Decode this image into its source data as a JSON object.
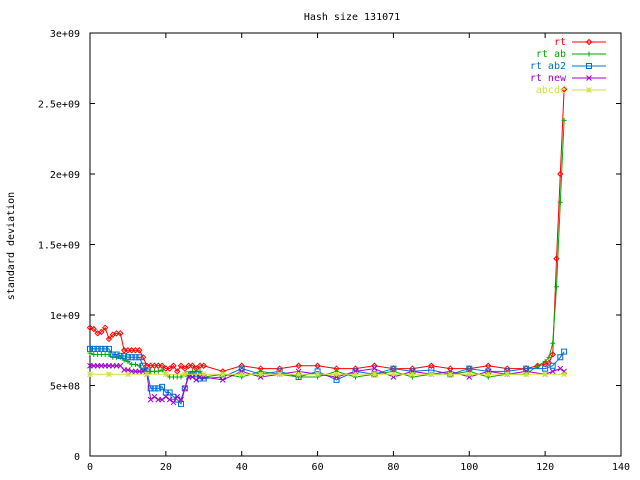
{
  "chart_data": {
    "type": "line",
    "title": "Hash size 131071",
    "xlabel": "",
    "ylabel": "standard deviation",
    "xlim": [
      0,
      140
    ],
    "ylim": [
      0,
      3000000000
    ],
    "x_ticks": [
      {
        "value": 0,
        "label": "0"
      },
      {
        "value": 20,
        "label": "20"
      },
      {
        "value": 40,
        "label": "40"
      },
      {
        "value": 60,
        "label": "60"
      },
      {
        "value": 80,
        "label": "80"
      },
      {
        "value": 100,
        "label": "100"
      },
      {
        "value": 120,
        "label": "120"
      },
      {
        "value": 140,
        "label": "140"
      }
    ],
    "y_ticks": [
      {
        "value": 0,
        "label": "0"
      },
      {
        "value": 500000000,
        "label": "5e+08"
      },
      {
        "value": 1000000000,
        "label": "1e+09"
      },
      {
        "value": 1500000000,
        "label": "1.5e+09"
      },
      {
        "value": 2000000000,
        "label": "2e+09"
      },
      {
        "value": 2500000000,
        "label": "2.5e+09"
      },
      {
        "value": 3000000000,
        "label": "3e+09"
      }
    ],
    "grid": false,
    "legend_position": "top-right",
    "series": [
      {
        "name": "rt",
        "color": "#ff0000",
        "marker": "diamond",
        "x": [
          0,
          1,
          2,
          3,
          4,
          5,
          6,
          7,
          8,
          9,
          10,
          11,
          12,
          13,
          14,
          15,
          16,
          17,
          18,
          19,
          20,
          21,
          22,
          23,
          24,
          25,
          26,
          27,
          28,
          29,
          30,
          35,
          40,
          45,
          50,
          55,
          60,
          65,
          70,
          75,
          80,
          85,
          90,
          95,
          100,
          105,
          110,
          115,
          118,
          120,
          121,
          122,
          123,
          124,
          125
        ],
        "y": [
          910000000,
          900000000,
          870000000,
          880000000,
          910000000,
          830000000,
          860000000,
          870000000,
          870000000,
          750000000,
          750000000,
          750000000,
          750000000,
          750000000,
          700000000,
          640000000,
          640000000,
          640000000,
          640000000,
          640000000,
          620000000,
          620000000,
          640000000,
          600000000,
          640000000,
          620000000,
          640000000,
          640000000,
          620000000,
          640000000,
          640000000,
          600000000,
          640000000,
          620000000,
          620000000,
          640000000,
          640000000,
          620000000,
          620000000,
          640000000,
          620000000,
          620000000,
          640000000,
          620000000,
          620000000,
          640000000,
          620000000,
          620000000,
          640000000,
          650000000,
          660000000,
          720000000,
          1400000000,
          2000000000,
          2600000000
        ]
      },
      {
        "name": "rt ab",
        "color": "#00aa00",
        "marker": "plus",
        "x": [
          0,
          1,
          2,
          3,
          4,
          5,
          6,
          7,
          8,
          9,
          10,
          11,
          12,
          13,
          14,
          15,
          16,
          17,
          18,
          19,
          20,
          21,
          22,
          23,
          24,
          25,
          26,
          27,
          28,
          29,
          30,
          35,
          40,
          45,
          50,
          55,
          60,
          65,
          70,
          75,
          80,
          85,
          90,
          95,
          100,
          105,
          110,
          115,
          118,
          120,
          121,
          122,
          123,
          124,
          125
        ],
        "y": [
          730000000,
          720000000,
          720000000,
          720000000,
          720000000,
          720000000,
          700000000,
          700000000,
          700000000,
          680000000,
          670000000,
          650000000,
          650000000,
          640000000,
          610000000,
          600000000,
          600000000,
          600000000,
          600000000,
          610000000,
          580000000,
          560000000,
          560000000,
          560000000,
          560000000,
          580000000,
          580000000,
          600000000,
          600000000,
          600000000,
          560000000,
          580000000,
          560000000,
          600000000,
          580000000,
          560000000,
          560000000,
          600000000,
          560000000,
          580000000,
          600000000,
          560000000,
          580000000,
          580000000,
          600000000,
          560000000,
          580000000,
          580000000,
          640000000,
          670000000,
          700000000,
          800000000,
          1200000000,
          1800000000,
          2380000000
        ]
      },
      {
        "name": "rt ab2",
        "color": "#0070d0",
        "marker": "square",
        "x": [
          0,
          1,
          2,
          3,
          4,
          5,
          6,
          7,
          8,
          9,
          10,
          11,
          12,
          13,
          14,
          15,
          16,
          17,
          18,
          19,
          20,
          21,
          22,
          23,
          24,
          25,
          26,
          27,
          28,
          29,
          30,
          35,
          40,
          45,
          50,
          55,
          60,
          65,
          70,
          75,
          80,
          85,
          90,
          95,
          100,
          105,
          110,
          115,
          120,
          122,
          124,
          125
        ],
        "y": [
          760000000,
          760000000,
          760000000,
          760000000,
          760000000,
          760000000,
          720000000,
          720000000,
          710000000,
          710000000,
          700000000,
          700000000,
          700000000,
          700000000,
          640000000,
          600000000,
          480000000,
          480000000,
          480000000,
          490000000,
          450000000,
          450000000,
          420000000,
          400000000,
          370000000,
          480000000,
          580000000,
          580000000,
          580000000,
          550000000,
          550000000,
          560000000,
          620000000,
          580000000,
          600000000,
          560000000,
          600000000,
          540000000,
          600000000,
          580000000,
          620000000,
          600000000,
          610000000,
          580000000,
          620000000,
          600000000,
          600000000,
          620000000,
          620000000,
          640000000,
          700000000,
          740000000
        ]
      },
      {
        "name": "rt new",
        "color": "#a000d0",
        "marker": "cross",
        "x": [
          0,
          1,
          2,
          3,
          4,
          5,
          6,
          7,
          8,
          9,
          10,
          11,
          12,
          13,
          14,
          15,
          16,
          17,
          18,
          19,
          20,
          21,
          22,
          23,
          24,
          25,
          26,
          27,
          28,
          29,
          30,
          35,
          40,
          45,
          50,
          55,
          60,
          65,
          70,
          75,
          80,
          85,
          90,
          95,
          100,
          105,
          110,
          115,
          120,
          122,
          124,
          125
        ],
        "y": [
          640000000,
          640000000,
          640000000,
          640000000,
          640000000,
          640000000,
          640000000,
          640000000,
          640000000,
          610000000,
          610000000,
          600000000,
          600000000,
          600000000,
          600000000,
          580000000,
          400000000,
          420000000,
          400000000,
          400000000,
          420000000,
          400000000,
          380000000,
          420000000,
          400000000,
          480000000,
          560000000,
          560000000,
          540000000,
          560000000,
          560000000,
          540000000,
          600000000,
          560000000,
          580000000,
          600000000,
          580000000,
          560000000,
          600000000,
          620000000,
          560000000,
          600000000,
          580000000,
          600000000,
          560000000,
          600000000,
          580000000,
          600000000,
          580000000,
          600000000,
          620000000,
          600000000
        ]
      },
      {
        "name": "abcde",
        "color": "#d0e040",
        "marker": "star",
        "x": [
          0,
          5,
          10,
          15,
          20,
          25,
          30,
          35,
          40,
          45,
          50,
          55,
          60,
          65,
          70,
          75,
          80,
          85,
          90,
          95,
          100,
          105,
          110,
          115,
          120,
          125
        ],
        "y": [
          580000000,
          580000000,
          580000000,
          580000000,
          580000000,
          580000000,
          580000000,
          580000000,
          580000000,
          580000000,
          580000000,
          580000000,
          580000000,
          580000000,
          580000000,
          580000000,
          580000000,
          580000000,
          580000000,
          580000000,
          580000000,
          580000000,
          580000000,
          580000000,
          580000000,
          580000000
        ]
      }
    ]
  }
}
